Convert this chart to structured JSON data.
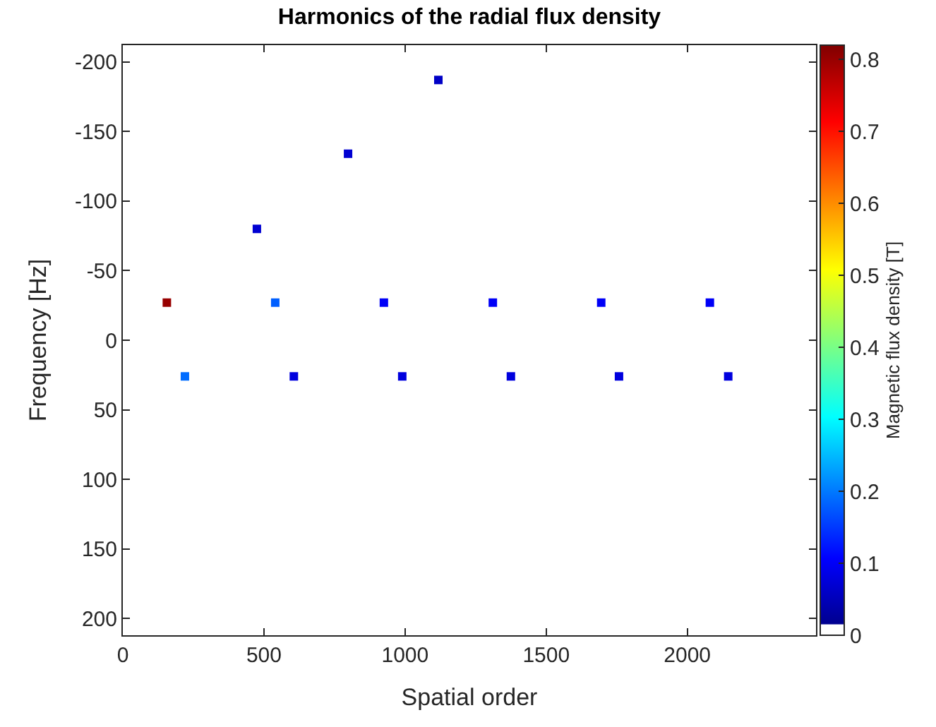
{
  "chart_data": {
    "type": "scatter",
    "title": "Harmonics of the radial flux density",
    "xlabel": "Spatial order",
    "ylabel": "Frequency [Hz]",
    "clabel": "Magnetic flux density [T]",
    "x": [
      156,
      220,
      475,
      540,
      606,
      798,
      925,
      990,
      1118,
      1311,
      1375,
      1695,
      1758,
      2080,
      2145
    ],
    "values": [
      -27,
      26,
      -80,
      -27,
      26,
      -134,
      -27,
      26,
      -187,
      -27,
      26,
      -27,
      26,
      -27,
      26
    ],
    "cvalues": [
      0.8,
      0.19,
      0.07,
      0.18,
      0.08,
      0.07,
      0.1,
      0.08,
      0.06,
      0.1,
      0.08,
      0.1,
      0.08,
      0.1,
      0.08
    ],
    "xlim": [
      0,
      2456
    ],
    "xticks": [
      0,
      500,
      1000,
      1500,
      2000
    ],
    "ylim": [
      212,
      -212
    ],
    "yticks": [
      -200,
      -150,
      -100,
      -50,
      0,
      50,
      100,
      150,
      200
    ],
    "clim": [
      0,
      0.82
    ],
    "cticks": [
      0,
      0.1,
      0.2,
      0.3,
      0.4,
      0.5,
      0.6,
      0.7,
      0.8
    ],
    "marker": "square"
  }
}
